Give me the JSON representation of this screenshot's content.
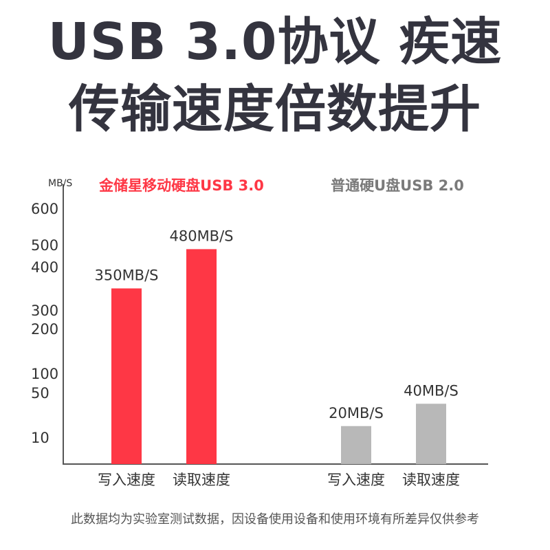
{
  "title": {
    "line1": "USB 3.0协议 疾速",
    "line2": "传输速度倍数提升"
  },
  "chart_data": {
    "type": "bar",
    "unit_label": "MB/S",
    "y_ticks": [
      "10",
      "50",
      "100",
      "200",
      "300",
      "400",
      "500",
      "600"
    ],
    "groups": [
      {
        "name": "金储星移动硬盘USB 3.0",
        "color": "#fe3745",
        "name_color": "#fe3745",
        "categories": [
          "写入速度",
          "读取速度"
        ],
        "values": [
          350,
          480
        ],
        "value_labels": [
          "350MB/S",
          "480MB/S"
        ]
      },
      {
        "name": "普通硬U盘USB 2.0",
        "color": "#b8b8b8",
        "name_color": "#7a7a7a",
        "categories": [
          "写入速度",
          "读取速度"
        ],
        "values": [
          20,
          40
        ],
        "value_labels": [
          "20MB/S",
          "40MB/S"
        ]
      }
    ]
  },
  "footnote": "此数据均为实验室测试数据，因设备使用设备和使用环境有所差异仅供参考"
}
